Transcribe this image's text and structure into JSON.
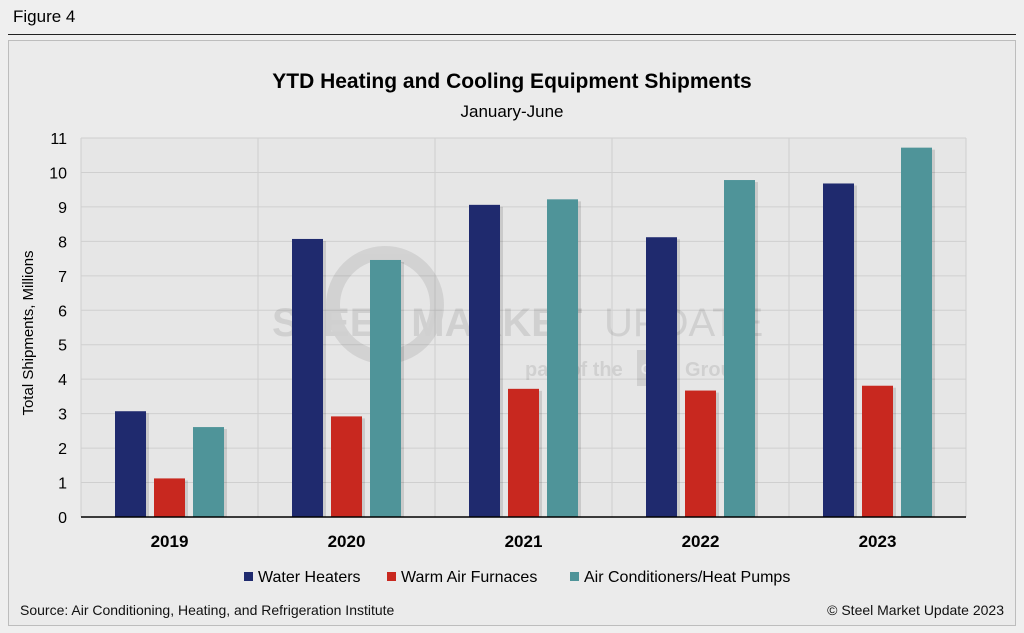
{
  "figure_label": "Figure 4",
  "watermark": {
    "brand_left": "STEEL MARKET",
    "brand_right": "UPDATE",
    "tagline_left": "part of the",
    "tagline_logo": "CRU",
    "tagline_right": "Group"
  },
  "footer": {
    "source": "Source: Air Conditioning, Heating, and Refrigeration Institute",
    "copyright": "© Steel Market Update 2023"
  },
  "chart_data": {
    "type": "bar",
    "title": "YTD Heating and Cooling Equipment Shipments",
    "subtitle": "January-June",
    "xlabel": "",
    "ylabel": "Total Shipments, Millions",
    "ylim": [
      0,
      11
    ],
    "yticks": [
      "0",
      "1",
      "2",
      "3",
      "4",
      "5",
      "6",
      "7",
      "8",
      "9",
      "10",
      "11"
    ],
    "grid": true,
    "legend_position": "bottom",
    "categories": [
      "2019",
      "2020",
      "2021",
      "2022",
      "2023"
    ],
    "series": [
      {
        "name": "Water Heaters",
        "color": "#1f2a6e",
        "values": [
          3.07,
          8.07,
          9.06,
          8.12,
          9.68
        ]
      },
      {
        "name": "Warm Air Furnaces",
        "color": "#c8281f",
        "values": [
          1.12,
          2.92,
          3.72,
          3.67,
          3.81
        ]
      },
      {
        "name": "Air Conditioners/Heat Pumps",
        "color": "#4f9499",
        "values": [
          2.61,
          7.46,
          9.22,
          9.78,
          10.72
        ]
      }
    ]
  }
}
